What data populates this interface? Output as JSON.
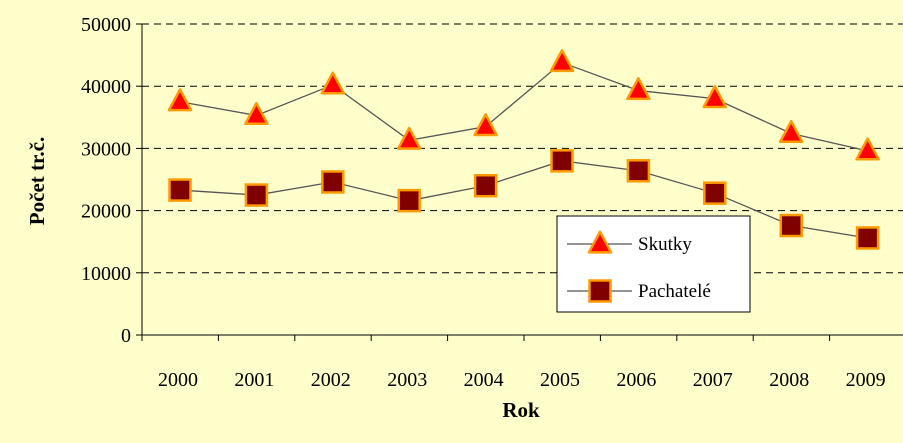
{
  "chart_data": {
    "type": "line",
    "title": "",
    "xlabel": "Rok",
    "ylabel": "Počet tr.č.",
    "categories": [
      "2000",
      "2001",
      "2002",
      "2003",
      "2004",
      "2005",
      "2006",
      "2007",
      "2008",
      "2009"
    ],
    "ylim": [
      0,
      50000
    ],
    "y_ticks": [
      "0",
      "10000",
      "20000",
      "30000",
      "40000",
      "50000"
    ],
    "gridlines": "horizontal dashed",
    "legend_position": "lower-right",
    "series": [
      {
        "name": "Skutky",
        "marker": "triangle",
        "color": "#ff0000",
        "values": [
          37500,
          35300,
          40200,
          31300,
          33500,
          43800,
          39300,
          38000,
          32400,
          29600
        ]
      },
      {
        "name": "Pachatelé",
        "marker": "square",
        "color": "#800000",
        "values": [
          23300,
          22500,
          24600,
          21600,
          24000,
          28000,
          26400,
          22800,
          17600,
          15600
        ]
      }
    ]
  },
  "colors": {
    "background": "#ffffcc",
    "line": "#555555",
    "grid": "#000000",
    "triangle_fill": "#ff0000",
    "triangle_edge": "#ff9900",
    "square_fill": "#800000",
    "square_edge": "#ff9900"
  }
}
